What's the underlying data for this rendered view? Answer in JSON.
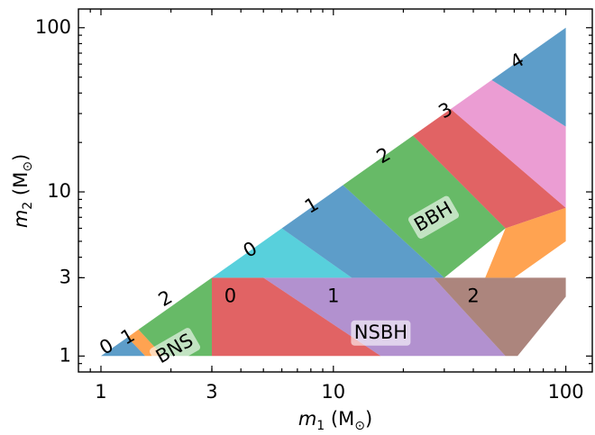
{
  "chart_data": {
    "type": "scatter",
    "title": "",
    "xscale": "log",
    "yscale": "log",
    "xlim": [
      0.8,
      130
    ],
    "ylim": [
      0.8,
      130
    ],
    "grid": false,
    "xlabel": {
      "var": "m",
      "sub": "1",
      "unit": "M",
      "unit_sub": "⊙"
    },
    "ylabel": {
      "var": "m",
      "sub": "2",
      "unit": "M",
      "unit_sub": "⊙"
    },
    "xticks": [
      {
        "v": 1,
        "label": "1"
      },
      {
        "v": 3,
        "label": "3"
      },
      {
        "v": 10,
        "label": "10"
      },
      {
        "v": 100,
        "label": "100"
      }
    ],
    "yticks": [
      {
        "v": 1,
        "label": "1"
      },
      {
        "v": 3,
        "label": "3"
      },
      {
        "v": 10,
        "label": "10"
      },
      {
        "v": 100,
        "label": "100"
      }
    ],
    "regions": [
      {
        "color": "#1f77b4",
        "poly": [
          [
            1,
            1
          ],
          [
            1.3,
            1.3
          ],
          [
            1.55,
            1
          ]
        ]
      },
      {
        "color": "#ff7f0e",
        "poly": [
          [
            1.3,
            1.3
          ],
          [
            1.45,
            1.45
          ],
          [
            1.85,
            1
          ],
          [
            1.55,
            1
          ]
        ]
      },
      {
        "color": "#2ca02c",
        "poly": [
          [
            1.45,
            1.45
          ],
          [
            3,
            3
          ],
          [
            3,
            1
          ],
          [
            1.85,
            1
          ]
        ]
      },
      {
        "color": "#d62728",
        "poly": [
          [
            3,
            3
          ],
          [
            3,
            1
          ],
          [
            16,
            1
          ],
          [
            5,
            3
          ]
        ]
      },
      {
        "color": "#9467bd",
        "poly": [
          [
            5,
            3
          ],
          [
            16,
            1
          ],
          [
            55,
            1
          ],
          [
            27,
            3
          ]
        ]
      },
      {
        "color": "#8c564b",
        "poly": [
          [
            27,
            3
          ],
          [
            55,
            1
          ],
          [
            62,
            1
          ],
          [
            100,
            2.3
          ],
          [
            100,
            3
          ]
        ]
      },
      {
        "color": "#17becf",
        "poly": [
          [
            3,
            3
          ],
          [
            6,
            6
          ],
          [
            12,
            3
          ]
        ]
      },
      {
        "color": "#1f77b4",
        "poly": [
          [
            6,
            6
          ],
          [
            11,
            11
          ],
          [
            30,
            3
          ],
          [
            12,
            3
          ]
        ]
      },
      {
        "color": "#2ca02c",
        "poly": [
          [
            11,
            11
          ],
          [
            22,
            22
          ],
          [
            55,
            6
          ],
          [
            30,
            3
          ]
        ]
      },
      {
        "color": "#d62728",
        "poly": [
          [
            22,
            22
          ],
          [
            32,
            32
          ],
          [
            100,
            8
          ],
          [
            55,
            6
          ]
        ]
      },
      {
        "color": "#ff7f0e",
        "poly": [
          [
            55,
            6
          ],
          [
            100,
            8
          ],
          [
            100,
            5
          ],
          [
            60,
            3
          ],
          [
            45,
            3
          ]
        ]
      },
      {
        "color": "#e377c2",
        "poly": [
          [
            32,
            32
          ],
          [
            48,
            48
          ],
          [
            100,
            25
          ],
          [
            100,
            8
          ]
        ]
      },
      {
        "color": "#1f77b4",
        "poly": [
          [
            48,
            48
          ],
          [
            100,
            100
          ],
          [
            100,
            25
          ]
        ]
      }
    ],
    "annotations": [
      {
        "text": "0",
        "x": 1.06,
        "y": 1.13,
        "rot": -30
      },
      {
        "text": "1",
        "x": 1.31,
        "y": 1.3,
        "rot": -30
      },
      {
        "text": "2",
        "x": 1.9,
        "y": 2.22,
        "rot": -30
      },
      {
        "text": "BNS",
        "x": 2.08,
        "y": 1.1,
        "rot": -30,
        "box": true
      },
      {
        "text": "0",
        "x": 3.6,
        "y": 2.3,
        "rot": 0
      },
      {
        "text": "1",
        "x": 10,
        "y": 2.3,
        "rot": 0
      },
      {
        "text": "2",
        "x": 40,
        "y": 2.3,
        "rot": 0
      },
      {
        "text": "NSBH",
        "x": 16,
        "y": 1.38,
        "rot": 0,
        "box": true
      },
      {
        "text": "0",
        "x": 4.4,
        "y": 4.4,
        "rot": -30
      },
      {
        "text": "1",
        "x": 8.1,
        "y": 8.2,
        "rot": -30
      },
      {
        "text": "2",
        "x": 16.5,
        "y": 16.5,
        "rot": -30
      },
      {
        "text": "3",
        "x": 30.5,
        "y": 31,
        "rot": -30
      },
      {
        "text": "4",
        "x": 62,
        "y": 62,
        "rot": -30
      },
      {
        "text": "BBH",
        "x": 27,
        "y": 7,
        "rot": -30,
        "box": true
      }
    ]
  }
}
